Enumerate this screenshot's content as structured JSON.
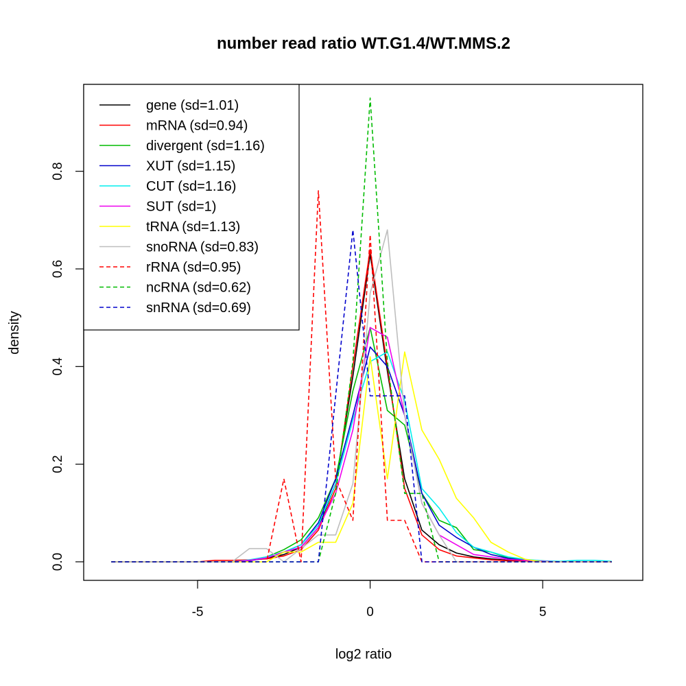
{
  "chart_data": {
    "type": "line",
    "title": "number read ratio WT.G1.4/WT.MMS.2",
    "xlabel": "log2 ratio",
    "ylabel": "density",
    "xlim": [
      -8.3,
      7.9
    ],
    "ylim": [
      -0.038,
      0.978
    ],
    "x_ticks": [
      -5,
      0,
      5
    ],
    "y_ticks": [
      0.0,
      0.2,
      0.4,
      0.6,
      0.8
    ],
    "x_tick_labels": [
      "-5",
      "0",
      "5"
    ],
    "y_tick_labels": [
      "0.0",
      "0.2",
      "0.4",
      "0.6",
      "0.8"
    ],
    "grid": false,
    "legend_position": "top-left",
    "series": [
      {
        "name": "gene (sd=1.01)",
        "color": "#000000",
        "dash": "solid",
        "x": [
          -7.5,
          -7,
          -6.5,
          -6,
          -5.5,
          -5,
          -4.5,
          -4,
          -3.5,
          -3,
          -2.5,
          -2,
          -1.5,
          -1,
          -0.5,
          0,
          0.5,
          1,
          1.5,
          2,
          2.5,
          3,
          3.5,
          4,
          4.5,
          5,
          5.5,
          6,
          6.5,
          7
        ],
        "y": [
          0,
          0,
          0,
          0,
          0,
          0,
          0,
          0,
          0.003,
          0.007,
          0.015,
          0.03,
          0.07,
          0.16,
          0.38,
          0.63,
          0.39,
          0.17,
          0.065,
          0.035,
          0.018,
          0.01,
          0.006,
          0.003,
          0.002,
          0.001,
          0,
          0,
          0,
          0
        ]
      },
      {
        "name": "mRNA (sd=0.94)",
        "color": "#ff0000",
        "dash": "solid",
        "x": [
          -7.5,
          -7,
          -6.5,
          -6,
          -5.5,
          -5,
          -4.5,
          -4,
          -3.5,
          -3,
          -2.5,
          -2,
          -1.5,
          -1,
          -0.5,
          0,
          0.5,
          1,
          1.5,
          2,
          2.5,
          3,
          3.5,
          4,
          4.5,
          5,
          5.5,
          6,
          6.5,
          7
        ],
        "y": [
          0,
          0,
          0,
          0,
          0,
          0,
          0.003,
          0.003,
          0.004,
          0.006,
          0.012,
          0.025,
          0.065,
          0.15,
          0.4,
          0.64,
          0.4,
          0.15,
          0.055,
          0.025,
          0.012,
          0.008,
          0.004,
          0.002,
          0.001,
          0,
          0,
          0,
          0,
          0
        ]
      },
      {
        "name": "divergent (sd=1.16)",
        "color": "#00bb00",
        "dash": "solid",
        "x": [
          -7.5,
          -7,
          -6.5,
          -6,
          -5.5,
          -5,
          -4.5,
          -4,
          -3.5,
          -3,
          -2.5,
          -2,
          -1.5,
          -1,
          -0.5,
          0,
          0.5,
          1,
          1.5,
          2,
          2.5,
          3,
          3.5,
          4,
          4.5,
          5,
          5.5,
          6,
          6.5,
          7
        ],
        "y": [
          0,
          0,
          0,
          0,
          0,
          0,
          0,
          0,
          0.003,
          0.01,
          0.025,
          0.045,
          0.09,
          0.17,
          0.35,
          0.48,
          0.31,
          0.28,
          0.14,
          0.085,
          0.07,
          0.025,
          0.02,
          0.008,
          0.004,
          0.002,
          0,
          0,
          0,
          0
        ]
      },
      {
        "name": "XUT (sd=1.15)",
        "color": "#0000cc",
        "dash": "solid",
        "x": [
          -7.5,
          -7,
          -6.5,
          -6,
          -5.5,
          -5,
          -4.5,
          -4,
          -3.5,
          -3,
          -2.5,
          -2,
          -1.5,
          -1,
          -0.5,
          0,
          0.5,
          1,
          1.5,
          2,
          2.5,
          3,
          3.5,
          4,
          4.5,
          5,
          5.5,
          6,
          6.5,
          7
        ],
        "y": [
          0,
          0,
          0,
          0,
          0,
          0,
          0,
          0,
          0.002,
          0.008,
          0.02,
          0.035,
          0.08,
          0.17,
          0.3,
          0.44,
          0.4,
          0.3,
          0.14,
          0.075,
          0.05,
          0.03,
          0.015,
          0.007,
          0.003,
          0.001,
          0,
          0,
          0,
          0
        ]
      },
      {
        "name": "CUT (sd=1.16)",
        "color": "#00eeee",
        "dash": "solid",
        "x": [
          -7.5,
          -7,
          -6.5,
          -6,
          -5.5,
          -5,
          -4.5,
          -4,
          -3.5,
          -3,
          -2.5,
          -2,
          -1.5,
          -1,
          -0.5,
          0,
          0.5,
          1,
          1.5,
          2,
          2.5,
          3,
          3.5,
          4,
          4.5,
          5,
          5.5,
          6,
          6.5,
          7
        ],
        "y": [
          0,
          0,
          0,
          0,
          0,
          0,
          0,
          0,
          0.004,
          0.01,
          0.02,
          0.035,
          0.075,
          0.16,
          0.29,
          0.41,
          0.43,
          0.33,
          0.15,
          0.11,
          0.06,
          0.03,
          0.02,
          0.01,
          0.005,
          0.002,
          0.001,
          0.003,
          0.003,
          0.001
        ]
      },
      {
        "name": "SUT (sd=1)",
        "color": "#ee00ee",
        "dash": "solid",
        "x": [
          -7.5,
          -7,
          -6.5,
          -6,
          -5.5,
          -5,
          -4.5,
          -4,
          -3.5,
          -3,
          -2.5,
          -2,
          -1.5,
          -1,
          -0.5,
          0,
          0.5,
          1,
          1.5,
          2,
          2.5,
          3,
          3.5,
          4,
          4.5,
          5,
          5.5,
          6,
          6.5,
          7
        ],
        "y": [
          0,
          0,
          0,
          0,
          0,
          0,
          0,
          0,
          0.003,
          0.008,
          0.02,
          0.03,
          0.07,
          0.14,
          0.27,
          0.48,
          0.46,
          0.3,
          0.12,
          0.055,
          0.035,
          0.015,
          0.01,
          0.005,
          0.003,
          0.001,
          0,
          0,
          0,
          0
        ]
      },
      {
        "name": "tRNA (sd=1.13)",
        "color": "#ffff00",
        "dash": "solid",
        "x": [
          -7.5,
          -7,
          -6.5,
          -6,
          -5.5,
          -5,
          -4.5,
          -4,
          -3.5,
          -3,
          -2.5,
          -2,
          -1.5,
          -1,
          -0.5,
          0,
          0.5,
          1,
          1.5,
          2,
          2.5,
          3,
          3.5,
          4,
          4.5,
          5,
          5.5,
          6,
          6.5,
          7
        ],
        "y": [
          0,
          0,
          0,
          0,
          0,
          0,
          0,
          0,
          0,
          0,
          0.02,
          0.02,
          0.04,
          0.04,
          0.12,
          0.42,
          0.17,
          0.43,
          0.27,
          0.21,
          0.13,
          0.09,
          0.04,
          0.02,
          0.005,
          0,
          0,
          0,
          0,
          0
        ]
      },
      {
        "name": "snoRNA (sd=0.83)",
        "color": "#bebebe",
        "dash": "solid",
        "x": [
          -7.5,
          -7,
          -6.5,
          -6,
          -5.5,
          -5,
          -4.5,
          -4,
          -3.5,
          -3,
          -2.5,
          -2,
          -1.5,
          -1,
          -0.5,
          0,
          0.5,
          1,
          1.5,
          2,
          2.5,
          3,
          3.5,
          4,
          4.5,
          5,
          5.5,
          6,
          6.5,
          7
        ],
        "y": [
          0,
          0,
          0,
          0,
          0,
          0,
          0,
          0,
          0.027,
          0.027,
          0,
          0.027,
          0.055,
          0.055,
          0.16,
          0.55,
          0.68,
          0.3,
          0.12,
          0.055,
          0,
          0,
          0,
          0,
          0,
          0,
          0,
          0,
          0,
          0
        ]
      },
      {
        "name": "rRNA (sd=0.95)",
        "color": "#ff0000",
        "dash": "dashed",
        "x": [
          -7.5,
          -7,
          -6.5,
          -6,
          -5.5,
          -5,
          -4.5,
          -4,
          -3.5,
          -3,
          -2.5,
          -2,
          -1.5,
          -1,
          -0.5,
          0,
          0.5,
          1,
          1.5,
          2,
          2.5,
          3,
          3.5,
          4,
          4.5,
          5,
          5.5,
          6,
          6.5,
          7
        ],
        "y": [
          0,
          0,
          0,
          0,
          0,
          0,
          0,
          0,
          0,
          0,
          0.17,
          0,
          0.76,
          0.17,
          0.085,
          0.67,
          0.085,
          0.085,
          0,
          0,
          0,
          0,
          0,
          0,
          0,
          0,
          0,
          0,
          0,
          0
        ]
      },
      {
        "name": "ncRNA (sd=0.62)",
        "color": "#00bb00",
        "dash": "dashed",
        "x": [
          -7.5,
          -7,
          -6.5,
          -6,
          -5.5,
          -5,
          -4.5,
          -4,
          -3.5,
          -3,
          -2.5,
          -2,
          -1.5,
          -1,
          -0.5,
          0,
          0.5,
          1,
          1.5,
          2,
          2.5,
          3,
          3.5,
          4,
          4.5,
          5,
          5.5,
          6,
          6.5,
          7
        ],
        "y": [
          0,
          0,
          0,
          0,
          0,
          0,
          0,
          0,
          0,
          0,
          0,
          0,
          0,
          0.14,
          0.41,
          0.95,
          0.41,
          0.14,
          0.14,
          0,
          0,
          0,
          0,
          0,
          0,
          0,
          0,
          0,
          0,
          0
        ]
      },
      {
        "name": "snRNA (sd=0.69)",
        "color": "#0000cc",
        "dash": "dashed",
        "x": [
          -7.5,
          -7,
          -6.5,
          -6,
          -5.5,
          -5,
          -4.5,
          -4,
          -3.5,
          -3,
          -2.5,
          -2,
          -1.5,
          -1,
          -0.5,
          0,
          0.5,
          1,
          1.5,
          2,
          2.5,
          3,
          3.5,
          4,
          4.5,
          5,
          5.5,
          6,
          6.5,
          7
        ],
        "y": [
          0,
          0,
          0,
          0,
          0,
          0,
          0,
          0,
          0,
          0,
          0,
          0,
          0,
          0.34,
          0.68,
          0.34,
          0.34,
          0.34,
          0,
          0,
          0,
          0,
          0,
          0,
          0,
          0,
          0,
          0,
          0,
          0
        ]
      }
    ]
  }
}
